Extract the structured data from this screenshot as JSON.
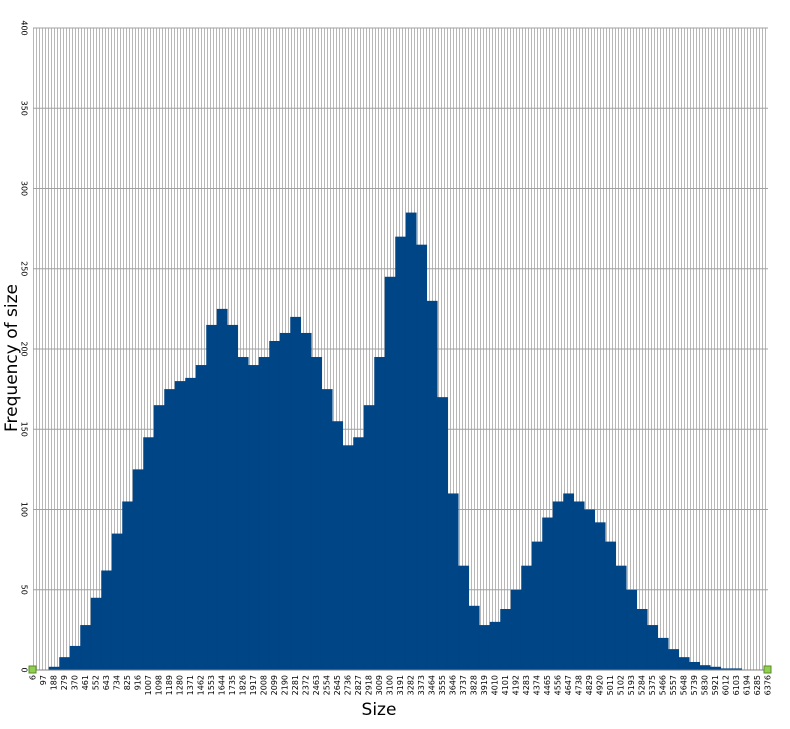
{
  "chart_data": {
    "type": "bar",
    "x_label": "Size",
    "y_label": "Frequency of size",
    "categories": [
      "6",
      "97",
      "188",
      "279",
      "370",
      "461",
      "552",
      "643",
      "734",
      "825",
      "916",
      "1007",
      "1098",
      "1189",
      "1280",
      "1371",
      "1462",
      "1553",
      "1644",
      "1735",
      "1826",
      "1917",
      "2008",
      "2099",
      "2190",
      "2281",
      "2372",
      "2463",
      "2554",
      "2645",
      "2736",
      "2827",
      "2918",
      "3009",
      "3100",
      "3191",
      "3282",
      "3373",
      "3464",
      "3555",
      "3646",
      "3737",
      "3828",
      "3919",
      "4010",
      "4101",
      "4192",
      "4283",
      "4374",
      "4465",
      "4556",
      "4647",
      "4738",
      "4829",
      "4920",
      "5011",
      "5102",
      "5193",
      "5284",
      "5375",
      "5466",
      "5557",
      "5648",
      "5739",
      "5830",
      "5921",
      "6012",
      "6103",
      "6194",
      "6285",
      "6376"
    ],
    "values": [
      0,
      0,
      2,
      8,
      15,
      28,
      45,
      62,
      85,
      105,
      125,
      145,
      165,
      175,
      180,
      182,
      190,
      215,
      225,
      215,
      195,
      190,
      195,
      205,
      210,
      220,
      210,
      195,
      175,
      155,
      140,
      145,
      165,
      195,
      245,
      270,
      285,
      265,
      230,
      170,
      110,
      65,
      40,
      28,
      30,
      38,
      50,
      65,
      80,
      95,
      105,
      110,
      105,
      100,
      92,
      80,
      65,
      50,
      38,
      28,
      20,
      13,
      8,
      5,
      3,
      2,
      1,
      1,
      0,
      0,
      0
    ],
    "color": "#004586",
    "ylim": [
      0,
      400
    ],
    "yticks": [
      0,
      50,
      100,
      150,
      200,
      250,
      300,
      350,
      400
    ],
    "grid": true
  }
}
